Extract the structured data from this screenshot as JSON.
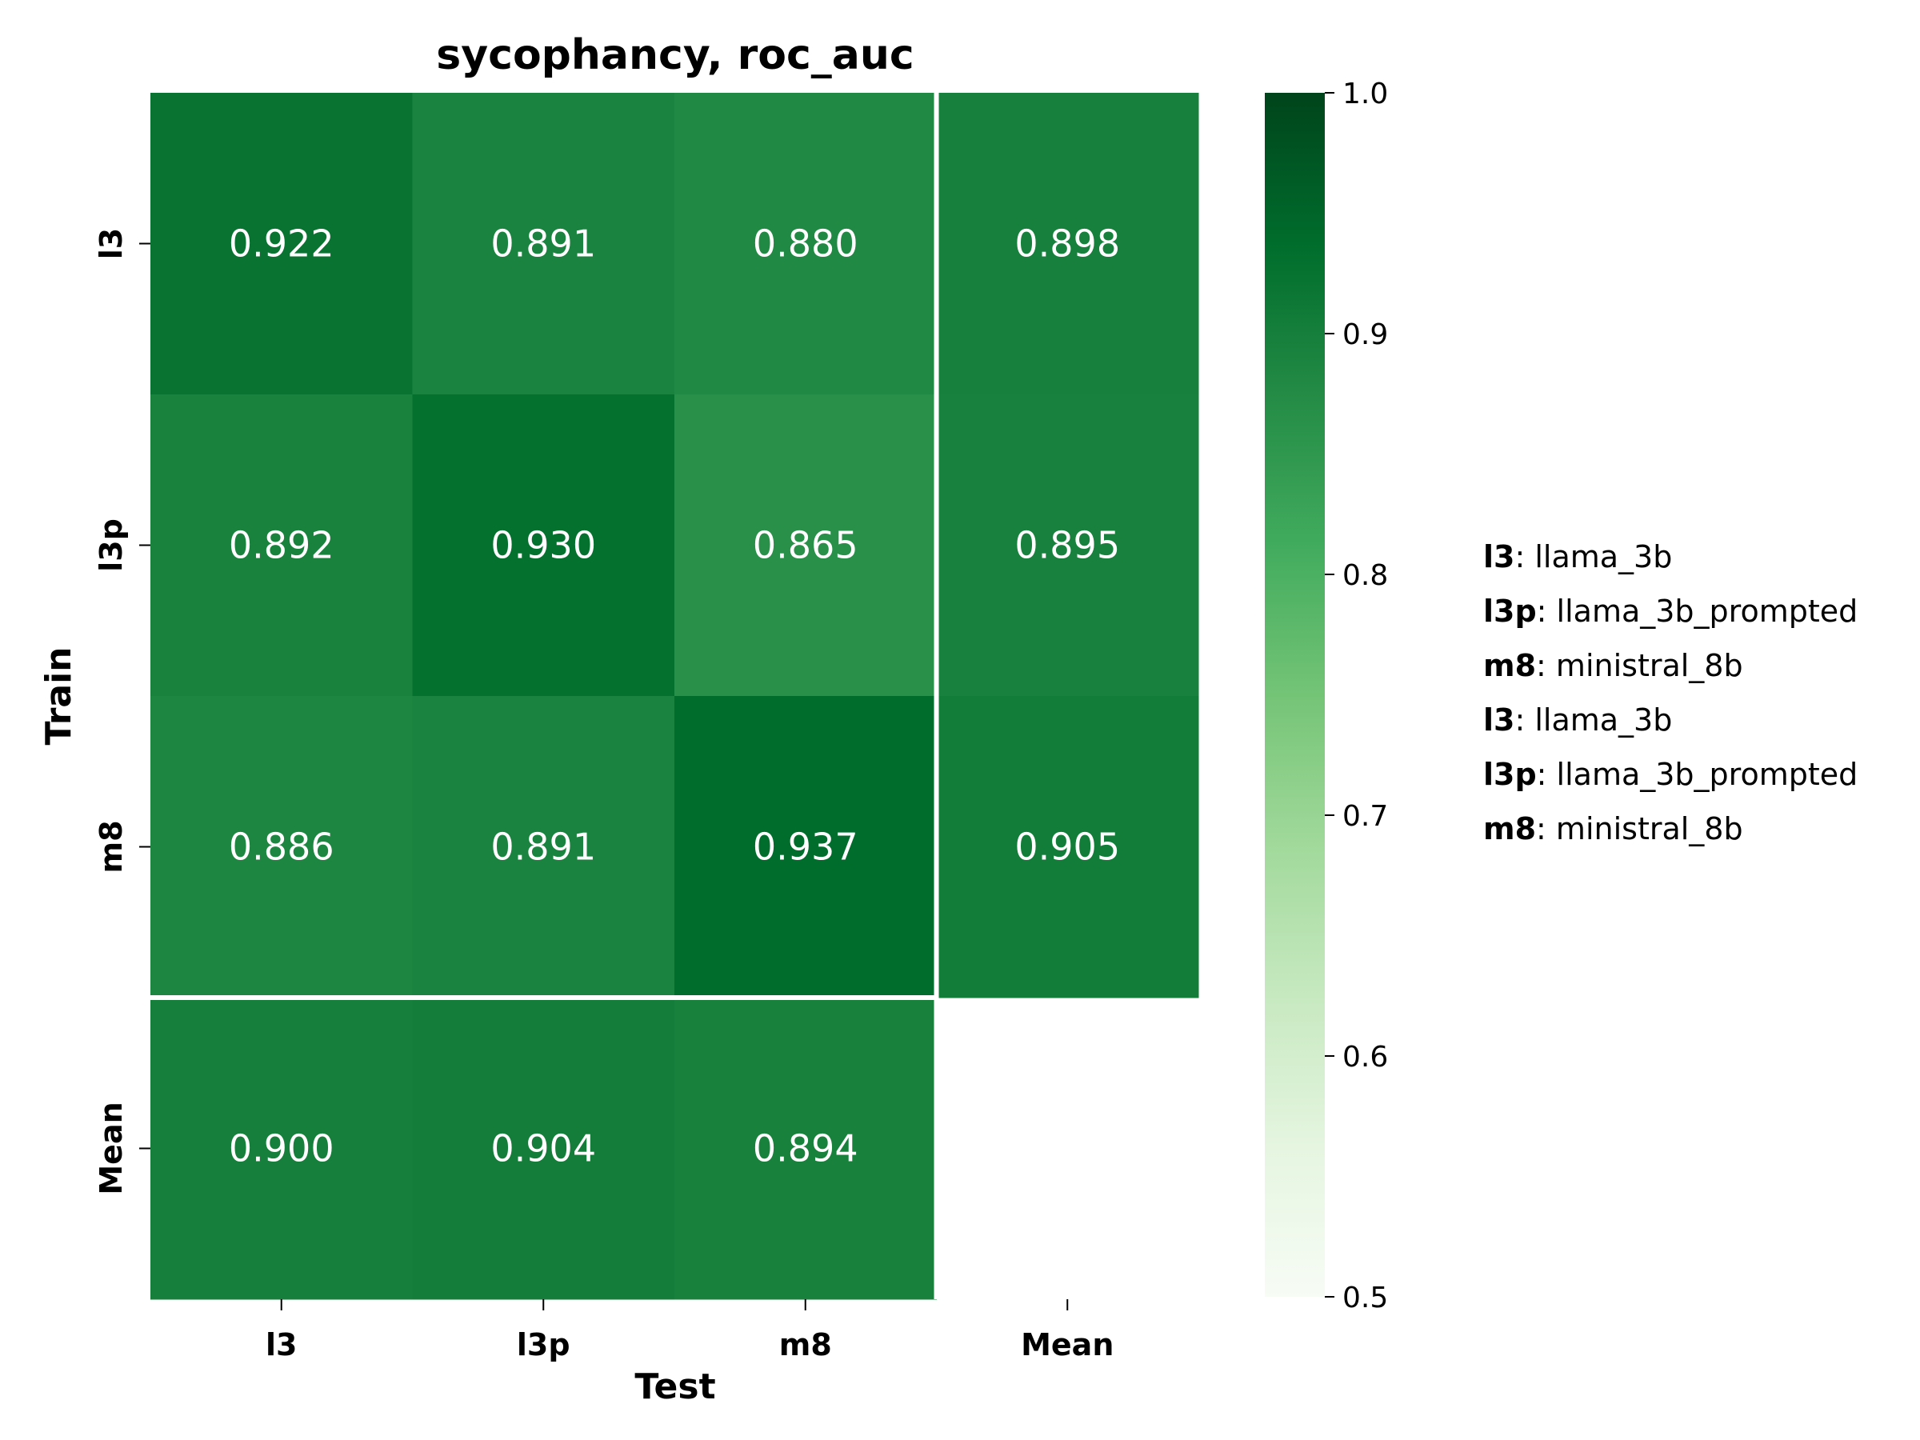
{
  "chart_data": {
    "type": "heatmap",
    "title": "sycophancy, roc_auc",
    "xlabel": "Test",
    "ylabel": "Train",
    "x_categories": [
      "l3",
      "l3p",
      "m8",
      "Mean"
    ],
    "y_categories": [
      "l3",
      "l3p",
      "m8",
      "Mean"
    ],
    "values": [
      [
        0.922,
        0.891,
        0.88,
        0.898
      ],
      [
        0.892,
        0.93,
        0.865,
        0.895
      ],
      [
        0.886,
        0.891,
        0.937,
        0.905
      ],
      [
        0.9,
        0.904,
        0.894,
        null
      ]
    ],
    "cell_labels": [
      [
        "0.922",
        "0.891",
        "0.880",
        "0.898"
      ],
      [
        "0.892",
        "0.930",
        "0.865",
        "0.895"
      ],
      [
        "0.886",
        "0.891",
        "0.937",
        "0.905"
      ],
      [
        "0.900",
        "0.904",
        "0.894",
        ""
      ]
    ],
    "colorbar": {
      "range": [
        0.5,
        1.0
      ],
      "ticks": [
        "0.5",
        "0.6",
        "0.7",
        "0.8",
        "0.9",
        "1.0"
      ],
      "colormap": "Greens"
    },
    "separators": "white lines between data block and mean row/column",
    "legend": [
      {
        "key": "l3",
        "text": ": llama_3b"
      },
      {
        "key": "l3p",
        "text": ": llama_3b_prompted"
      },
      {
        "key": "m8",
        "text": ": ministral_8b"
      },
      {
        "key": "l3",
        "text": ": llama_3b"
      },
      {
        "key": "l3p",
        "text": ": llama_3b_prompted"
      },
      {
        "key": "m8",
        "text": ": ministral_8b"
      }
    ],
    "legend_placement": "right"
  }
}
